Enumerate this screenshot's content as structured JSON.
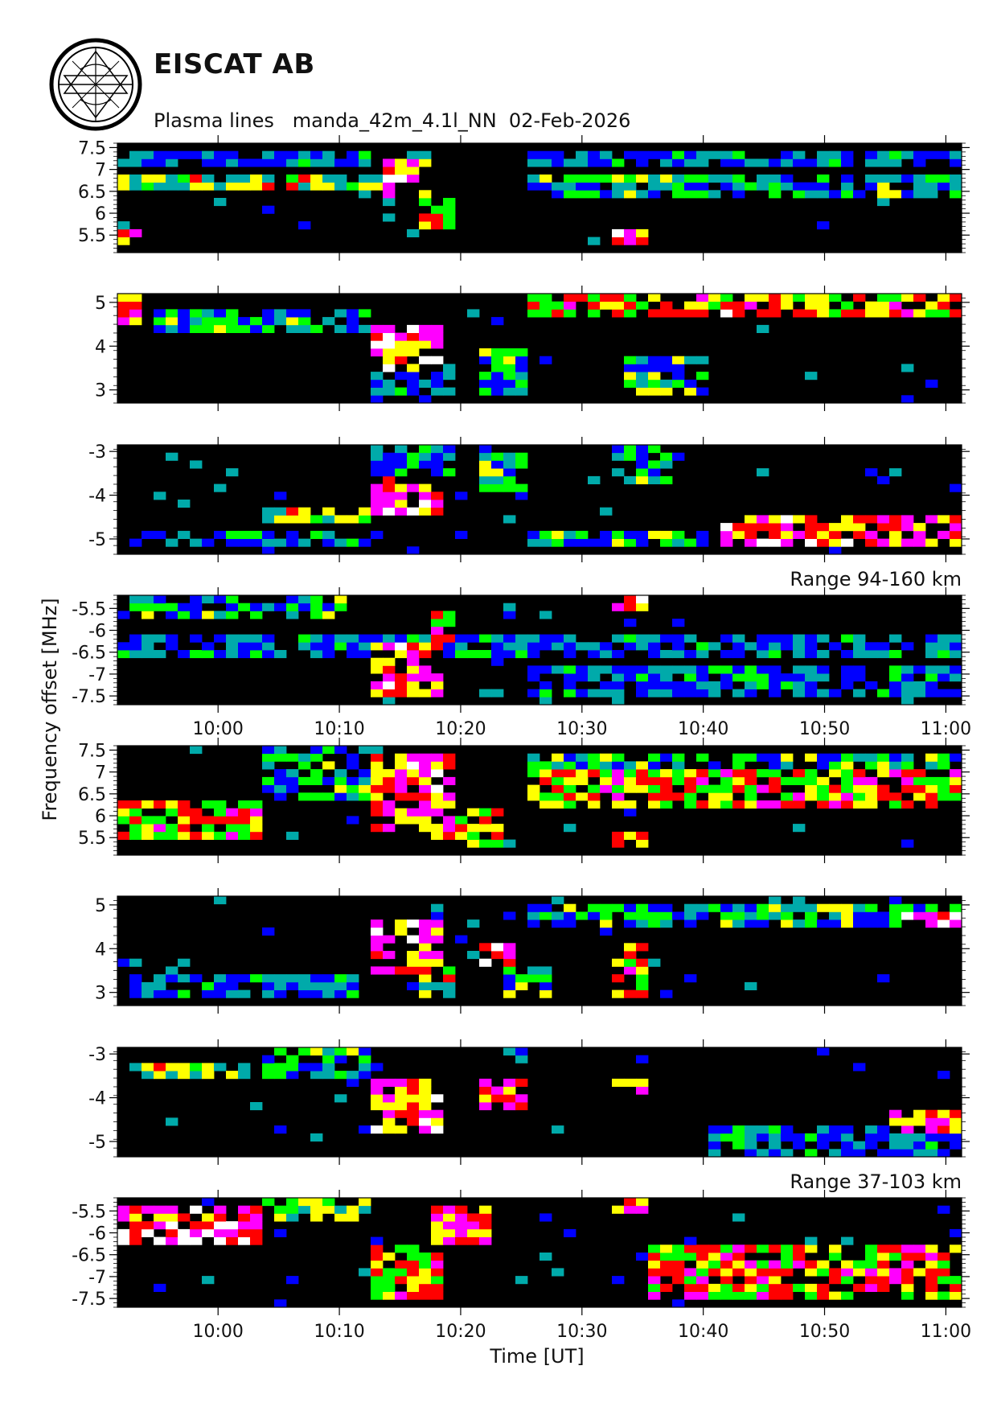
{
  "header": {
    "org": "EISCAT AB",
    "subtitle": "Plasma lines   manda_42m_4.1l_NN  02-Feb-2026",
    "logo": "eiscat-logo"
  },
  "chart_data": {
    "type": "heatmap",
    "title": "Plasma lines   manda_42m_4.1l_NN  02-Feb-2026",
    "xlabel": "Time [UT]",
    "ylabel": "Frequency offset [MHz]",
    "x_ticks": [
      "10:00",
      "10:10",
      "10:20",
      "10:30",
      "10:40",
      "10:50",
      "11:00"
    ],
    "x_tick_values_min": [
      600,
      610,
      620,
      630,
      640,
      650,
      660
    ],
    "xlim_min": [
      591.7,
      661.3
    ],
    "bin_minutes": 1.0,
    "colorscale": [
      "#000000",
      "#0000ff",
      "#00aaaa",
      "#00ff00",
      "#ffff00",
      "#ff0000",
      "#ff00ff",
      "#ffffff"
    ],
    "panels": [
      {
        "group": "Range 94-160 km",
        "ylim": [
          5.1,
          7.6
        ],
        "yticks": [
          5.5,
          6,
          6.5,
          7,
          7.5
        ],
        "ytick_labels": [
          "5.5",
          "6",
          "6.5",
          "7",
          "7.5"
        ],
        "features": [
          {
            "t": [
              591.7,
              618
            ],
            "f": [
              6.5,
              6.9
            ],
            "level": 4
          },
          {
            "t": [
              591.7,
              618
            ],
            "f": [
              7.0,
              7.4
            ],
            "level": 2
          },
          {
            "t": [
              614,
              618
            ],
            "f": [
              6.4,
              7.2
            ],
            "level": 6
          },
          {
            "t": [
              617,
              620
            ],
            "f": [
              5.7,
              6.3
            ],
            "level": 5
          },
          {
            "t": [
              626,
              661.3
            ],
            "f": [
              6.3,
              6.9
            ],
            "level": 3
          },
          {
            "t": [
              626,
              661.3
            ],
            "f": [
              7.0,
              7.5
            ],
            "level": 2
          },
          {
            "t": [
              591.7,
              594
            ],
            "f": [
              5.2,
              5.7
            ],
            "level": 6
          },
          {
            "t": [
              632,
              635
            ],
            "f": [
              5.3,
              5.7
            ],
            "level": 6
          }
        ]
      },
      {
        "group": "Range 94-160 km",
        "ylim": [
          2.7,
          5.2
        ],
        "yticks": [
          3,
          4,
          5
        ],
        "ytick_labels": [
          "3",
          "4",
          "5"
        ],
        "features": [
          {
            "t": [
              591.7,
              594
            ],
            "f": [
              4.5,
              5.2
            ],
            "level": 6
          },
          {
            "t": [
              595,
              613
            ],
            "f": [
              4.3,
              4.8
            ],
            "level": 3
          },
          {
            "t": [
              613,
              618.5
            ],
            "f": [
              3.5,
              4.4
            ],
            "level": 6
          },
          {
            "t": [
              613,
              620
            ],
            "f": [
              2.8,
              3.6
            ],
            "level": 2
          },
          {
            "t": [
              622,
              626
            ],
            "f": [
              2.8,
              4.0
            ],
            "level": 3
          },
          {
            "t": [
              632,
              640
            ],
            "f": [
              2.8,
              3.7
            ],
            "level": 3
          },
          {
            "t": [
              626,
              661.3
            ],
            "f": [
              4.6,
              5.2
            ],
            "level": 5
          },
          {
            "t": [
              640,
              647
            ],
            "f": [
              4.6,
              4.8
            ],
            "level": 7
          }
        ]
      },
      {
        "group": "Range 94-160 km",
        "ylim": [
          -5.35,
          -2.85
        ],
        "yticks": [
          -5,
          -4,
          -3
        ],
        "ytick_labels": [
          "-5",
          "-4",
          "-3"
        ],
        "features": [
          {
            "t": [
              593,
              613
            ],
            "f": [
              -5.2,
              -4.8
            ],
            "level": 2
          },
          {
            "t": [
              604,
              613
            ],
            "f": [
              -4.7,
              -4.3
            ],
            "level": 4
          },
          {
            "t": [
              613,
              619
            ],
            "f": [
              -4.5,
              -3.5
            ],
            "level": 6
          },
          {
            "t": [
              613,
              620
            ],
            "f": [
              -3.5,
              -2.9
            ],
            "level": 2
          },
          {
            "t": [
              622,
              626
            ],
            "f": [
              -3.9,
              -3.0
            ],
            "level": 3
          },
          {
            "t": [
              632,
              637
            ],
            "f": [
              -3.8,
              -2.9
            ],
            "level": 3
          },
          {
            "t": [
              626,
              640
            ],
            "f": [
              -5.2,
              -4.8
            ],
            "level": 3
          },
          {
            "t": [
              641,
              661.3
            ],
            "f": [
              -5.1,
              -4.4
            ],
            "level": 6
          }
        ]
      },
      {
        "group": "Range 94-160 km",
        "ylim": [
          -7.7,
          -5.2
        ],
        "yticks": [
          -7.5,
          -7,
          -6.5,
          -6,
          -5.5
        ],
        "ytick_labels": [
          "-7.5",
          "-7",
          "-6.5",
          "-6",
          "-5.5"
        ],
        "features": [
          {
            "t": [
              591.7,
              611
            ],
            "f": [
              -5.8,
              -5.2
            ],
            "level": 3
          },
          {
            "t": [
              591.7,
              661.3
            ],
            "f": [
              -6.6,
              -6.1
            ],
            "level": 2
          },
          {
            "t": [
              613,
              619
            ],
            "f": [
              -7.6,
              -6.3
            ],
            "level": 6
          },
          {
            "t": [
              618,
              620
            ],
            "f": [
              -6.3,
              -5.6
            ],
            "level": 5
          },
          {
            "t": [
              626,
              661.3
            ],
            "f": [
              -7.6,
              -6.8
            ],
            "level": 2
          },
          {
            "t": [
              632,
              635
            ],
            "f": [
              -5.6,
              -5.2
            ],
            "level": 6
          }
        ],
        "label": "Range 94-160 km"
      },
      {
        "group": "Range 37-103 km",
        "ylim": [
          5.1,
          7.6
        ],
        "yticks": [
          5.5,
          6,
          6.5,
          7,
          7.5
        ],
        "ytick_labels": [
          "5.5",
          "6",
          "6.5",
          "7",
          "7.5"
        ],
        "features": [
          {
            "t": [
              591.7,
              604
            ],
            "f": [
              5.4,
              6.4
            ],
            "level": 5
          },
          {
            "t": [
              593,
              604
            ],
            "f": [
              5.6,
              6.0
            ],
            "level": 4
          },
          {
            "t": [
              604,
              614
            ],
            "f": [
              6.4,
              7.6
            ],
            "level": 3
          },
          {
            "t": [
              613,
              620
            ],
            "f": [
              5.6,
              7.5
            ],
            "level": 6
          },
          {
            "t": [
              618,
              624
            ],
            "f": [
              5.2,
              6.1
            ],
            "level": 5
          },
          {
            "t": [
              626,
              661.3
            ],
            "f": [
              6.1,
              7.0
            ],
            "level": 5
          },
          {
            "t": [
              626,
              661.3
            ],
            "f": [
              7.0,
              7.5
            ],
            "level": 3
          },
          {
            "t": [
              632,
              635
            ],
            "f": [
              5.2,
              5.6
            ],
            "level": 6
          }
        ]
      },
      {
        "group": "Range 37-103 km",
        "ylim": [
          2.7,
          5.2
        ],
        "yticks": [
          3,
          4,
          5
        ],
        "ytick_labels": [
          "3",
          "4",
          "5"
        ],
        "features": [
          {
            "t": [
              613,
              619
            ],
            "f": [
              3.5,
              4.6
            ],
            "level": 6
          },
          {
            "t": [
              617,
              620
            ],
            "f": [
              2.8,
              3.6
            ],
            "level": 4
          },
          {
            "t": [
              622,
              625
            ],
            "f": [
              3.6,
              4.2
            ],
            "level": 7
          },
          {
            "t": [
              624,
              627
            ],
            "f": [
              2.8,
              3.6
            ],
            "level": 3
          },
          {
            "t": [
              632,
              635
            ],
            "f": [
              2.8,
              4.1
            ],
            "level": 5
          },
          {
            "t": [
              593,
              612
            ],
            "f": [
              2.8,
              3.4
            ],
            "level": 2
          },
          {
            "t": [
              626,
              661.3
            ],
            "f": [
              4.5,
              5.1
            ],
            "level": 3
          },
          {
            "t": [
              656,
              661.3
            ],
            "f": [
              4.5,
              4.9
            ],
            "level": 7
          }
        ]
      },
      {
        "group": "Range 37-103 km",
        "ylim": [
          -5.35,
          -2.85
        ],
        "yticks": [
          -5,
          -4,
          -3
        ],
        "ytick_labels": [
          "-5",
          "-4",
          "-3"
        ],
        "features": [
          {
            "t": [
              593,
              604
            ],
            "f": [
              -3.5,
              -3.2
            ],
            "level": 4
          },
          {
            "t": [
              604,
              614
            ],
            "f": [
              -3.5,
              -2.9
            ],
            "level": 3
          },
          {
            "t": [
              613,
              619
            ],
            "f": [
              -4.8,
              -3.6
            ],
            "level": 6
          },
          {
            "t": [
              622,
              626
            ],
            "f": [
              -4.3,
              -3.6
            ],
            "level": 6
          },
          {
            "t": [
              632,
              635
            ],
            "f": [
              -4.0,
              -3.5
            ],
            "level": 6
          },
          {
            "t": [
              640,
              661.3
            ],
            "f": [
              -5.3,
              -4.6
            ],
            "level": 2
          },
          {
            "t": [
              655,
              661.3
            ],
            "f": [
              -4.8,
              -4.2
            ],
            "level": 6
          }
        ]
      },
      {
        "group": "Range 37-103 km",
        "ylim": [
          -7.7,
          -5.2
        ],
        "yticks": [
          -7.5,
          -7,
          -6.5,
          -6,
          -5.5
        ],
        "ytick_labels": [
          "-7.5",
          "-7",
          "-6.5",
          "-6",
          "-5.5"
        ],
        "features": [
          {
            "t": [
              591.7,
              604
            ],
            "f": [
              -6.3,
              -5.7
            ],
            "level": 7
          },
          {
            "t": [
              591.7,
              604
            ],
            "f": [
              -5.7,
              -5.4
            ],
            "level": 6
          },
          {
            "t": [
              604,
              613
            ],
            "f": [
              -5.8,
              -5.2
            ],
            "level": 4
          },
          {
            "t": [
              613,
              619
            ],
            "f": [
              -7.6,
              -6.3
            ],
            "level": 5
          },
          {
            "t": [
              618,
              623
            ],
            "f": [
              -6.3,
              -5.3
            ],
            "level": 6
          },
          {
            "t": [
              632,
              635
            ],
            "f": [
              -5.6,
              -5.2
            ],
            "level": 6
          },
          {
            "t": [
              635,
              661.3
            ],
            "f": [
              -7.6,
              -6.2
            ],
            "level": 5
          }
        ],
        "label": "Range 37-103 km"
      }
    ]
  }
}
